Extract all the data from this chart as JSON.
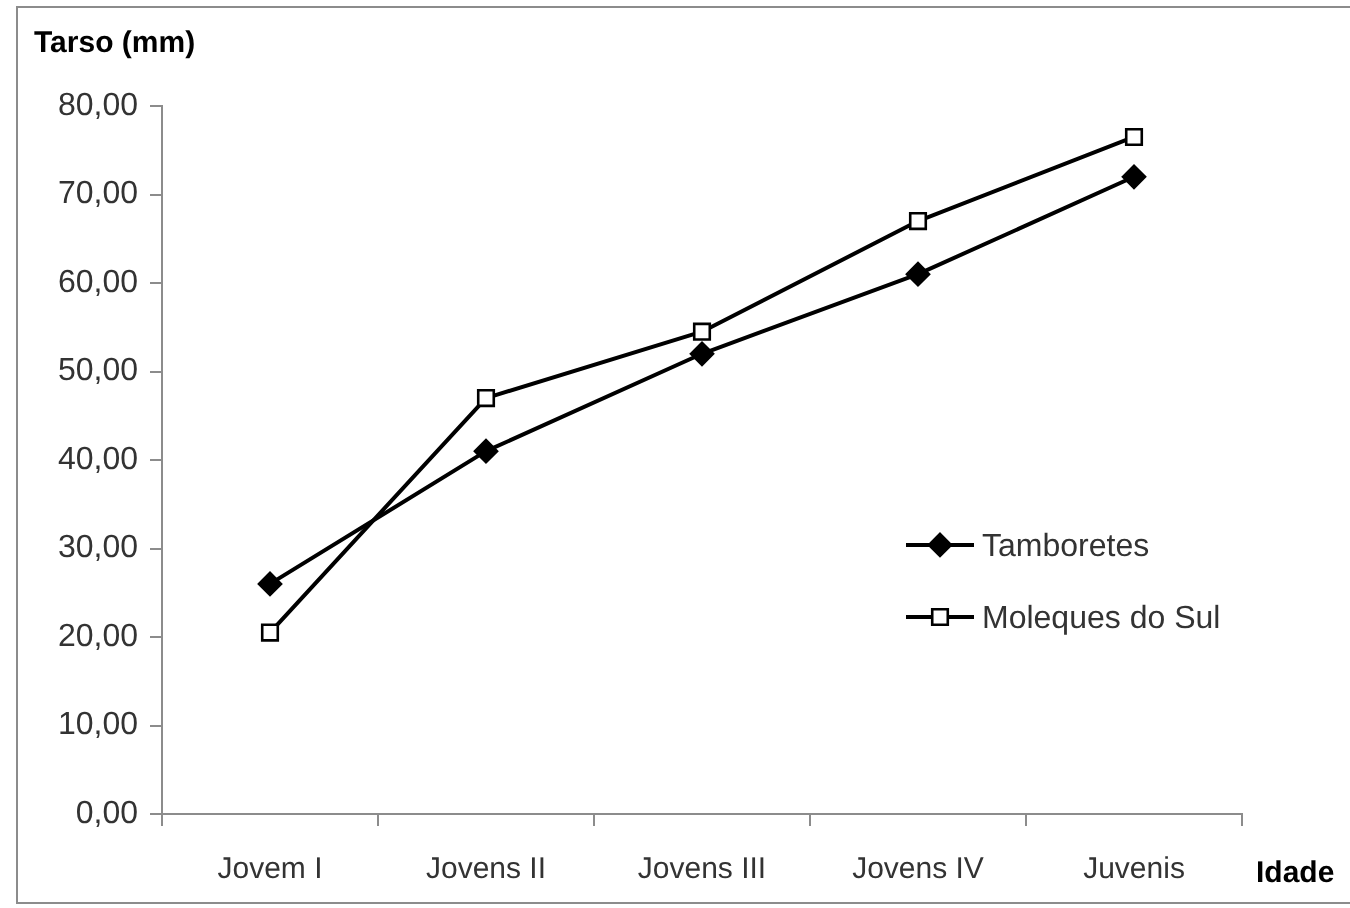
{
  "chart_data": {
    "type": "line",
    "ylabel": "Tarso (mm)",
    "xlabel": "Idade",
    "categories": [
      "Jovem I",
      "Jovens II",
      "Jovens III",
      "Jovens IV",
      "Juvenis"
    ],
    "series": [
      {
        "name": "Tamboretes",
        "color": "#000000",
        "marker": "diamond",
        "values": [
          26,
          41,
          52,
          61,
          72
        ]
      },
      {
        "name": "Moleques do Sul",
        "color": "#000000",
        "marker": "square",
        "values": [
          20.5,
          47,
          54.5,
          67,
          76.5
        ]
      }
    ],
    "ylim": [
      0,
      80
    ],
    "yticks": [
      {
        "value": 0,
        "label": "0,00"
      },
      {
        "value": 10,
        "label": "10,00"
      },
      {
        "value": 20,
        "label": "20,00"
      },
      {
        "value": 30,
        "label": "30,00"
      },
      {
        "value": 40,
        "label": "40,00"
      },
      {
        "value": 50,
        "label": "50,00"
      },
      {
        "value": 60,
        "label": "60,00"
      },
      {
        "value": 70,
        "label": "70,00"
      },
      {
        "value": 80,
        "label": "80,00"
      }
    ],
    "grid": false,
    "legend": "right",
    "line_style": "solid"
  }
}
